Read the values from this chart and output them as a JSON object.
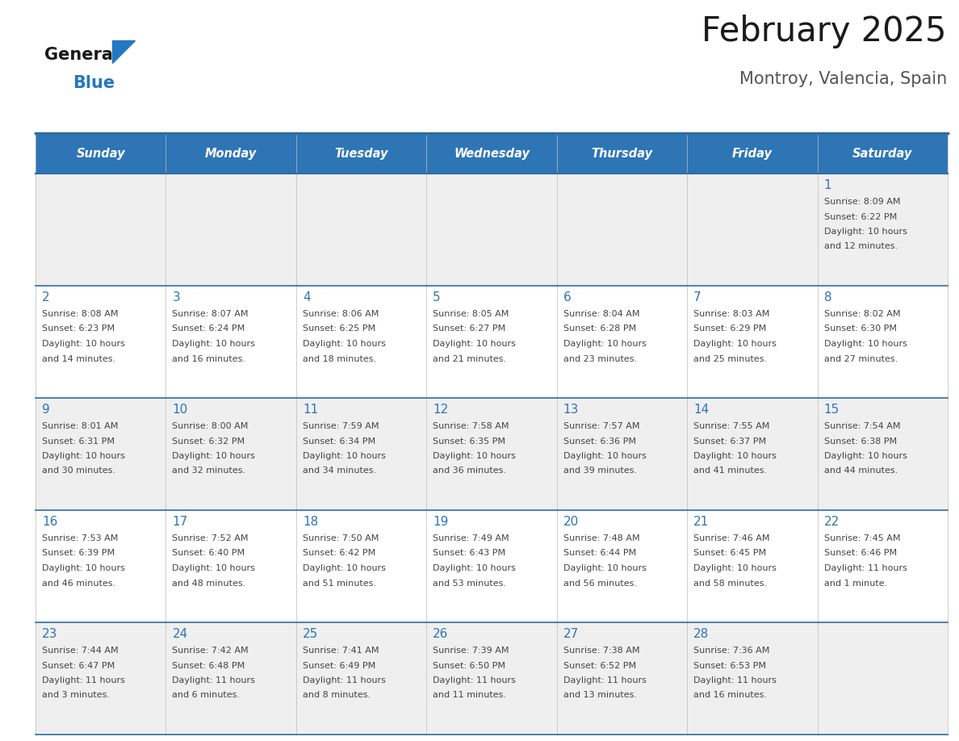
{
  "title": "February 2025",
  "subtitle": "Montroy, Valencia, Spain",
  "header_color": "#2E75B6",
  "header_text_color": "#FFFFFF",
  "cell_bg_white": "#FFFFFF",
  "cell_bg_grey": "#EFEFEF",
  "day_names": [
    "Sunday",
    "Monday",
    "Tuesday",
    "Wednesday",
    "Thursday",
    "Friday",
    "Saturday"
  ],
  "border_color": "#2E6DA4",
  "title_color": "#1a1a1a",
  "subtitle_color": "#555555",
  "day_num_color": "#2E75B6",
  "cell_text_color": "#444444",
  "logo_general_color": "#1a1a1a",
  "logo_blue_color": "#2478C0",
  "weeks": [
    [
      {
        "day": 0,
        "info": ""
      },
      {
        "day": 0,
        "info": ""
      },
      {
        "day": 0,
        "info": ""
      },
      {
        "day": 0,
        "info": ""
      },
      {
        "day": 0,
        "info": ""
      },
      {
        "day": 0,
        "info": ""
      },
      {
        "day": 1,
        "info": "Sunrise: 8:09 AM\nSunset: 6:22 PM\nDaylight: 10 hours\nand 12 minutes."
      }
    ],
    [
      {
        "day": 2,
        "info": "Sunrise: 8:08 AM\nSunset: 6:23 PM\nDaylight: 10 hours\nand 14 minutes."
      },
      {
        "day": 3,
        "info": "Sunrise: 8:07 AM\nSunset: 6:24 PM\nDaylight: 10 hours\nand 16 minutes."
      },
      {
        "day": 4,
        "info": "Sunrise: 8:06 AM\nSunset: 6:25 PM\nDaylight: 10 hours\nand 18 minutes."
      },
      {
        "day": 5,
        "info": "Sunrise: 8:05 AM\nSunset: 6:27 PM\nDaylight: 10 hours\nand 21 minutes."
      },
      {
        "day": 6,
        "info": "Sunrise: 8:04 AM\nSunset: 6:28 PM\nDaylight: 10 hours\nand 23 minutes."
      },
      {
        "day": 7,
        "info": "Sunrise: 8:03 AM\nSunset: 6:29 PM\nDaylight: 10 hours\nand 25 minutes."
      },
      {
        "day": 8,
        "info": "Sunrise: 8:02 AM\nSunset: 6:30 PM\nDaylight: 10 hours\nand 27 minutes."
      }
    ],
    [
      {
        "day": 9,
        "info": "Sunrise: 8:01 AM\nSunset: 6:31 PM\nDaylight: 10 hours\nand 30 minutes."
      },
      {
        "day": 10,
        "info": "Sunrise: 8:00 AM\nSunset: 6:32 PM\nDaylight: 10 hours\nand 32 minutes."
      },
      {
        "day": 11,
        "info": "Sunrise: 7:59 AM\nSunset: 6:34 PM\nDaylight: 10 hours\nand 34 minutes."
      },
      {
        "day": 12,
        "info": "Sunrise: 7:58 AM\nSunset: 6:35 PM\nDaylight: 10 hours\nand 36 minutes."
      },
      {
        "day": 13,
        "info": "Sunrise: 7:57 AM\nSunset: 6:36 PM\nDaylight: 10 hours\nand 39 minutes."
      },
      {
        "day": 14,
        "info": "Sunrise: 7:55 AM\nSunset: 6:37 PM\nDaylight: 10 hours\nand 41 minutes."
      },
      {
        "day": 15,
        "info": "Sunrise: 7:54 AM\nSunset: 6:38 PM\nDaylight: 10 hours\nand 44 minutes."
      }
    ],
    [
      {
        "day": 16,
        "info": "Sunrise: 7:53 AM\nSunset: 6:39 PM\nDaylight: 10 hours\nand 46 minutes."
      },
      {
        "day": 17,
        "info": "Sunrise: 7:52 AM\nSunset: 6:40 PM\nDaylight: 10 hours\nand 48 minutes."
      },
      {
        "day": 18,
        "info": "Sunrise: 7:50 AM\nSunset: 6:42 PM\nDaylight: 10 hours\nand 51 minutes."
      },
      {
        "day": 19,
        "info": "Sunrise: 7:49 AM\nSunset: 6:43 PM\nDaylight: 10 hours\nand 53 minutes."
      },
      {
        "day": 20,
        "info": "Sunrise: 7:48 AM\nSunset: 6:44 PM\nDaylight: 10 hours\nand 56 minutes."
      },
      {
        "day": 21,
        "info": "Sunrise: 7:46 AM\nSunset: 6:45 PM\nDaylight: 10 hours\nand 58 minutes."
      },
      {
        "day": 22,
        "info": "Sunrise: 7:45 AM\nSunset: 6:46 PM\nDaylight: 11 hours\nand 1 minute."
      }
    ],
    [
      {
        "day": 23,
        "info": "Sunrise: 7:44 AM\nSunset: 6:47 PM\nDaylight: 11 hours\nand 3 minutes."
      },
      {
        "day": 24,
        "info": "Sunrise: 7:42 AM\nSunset: 6:48 PM\nDaylight: 11 hours\nand 6 minutes."
      },
      {
        "day": 25,
        "info": "Sunrise: 7:41 AM\nSunset: 6:49 PM\nDaylight: 11 hours\nand 8 minutes."
      },
      {
        "day": 26,
        "info": "Sunrise: 7:39 AM\nSunset: 6:50 PM\nDaylight: 11 hours\nand 11 minutes."
      },
      {
        "day": 27,
        "info": "Sunrise: 7:38 AM\nSunset: 6:52 PM\nDaylight: 11 hours\nand 13 minutes."
      },
      {
        "day": 28,
        "info": "Sunrise: 7:36 AM\nSunset: 6:53 PM\nDaylight: 11 hours\nand 16 minutes."
      },
      {
        "day": 0,
        "info": ""
      }
    ]
  ],
  "row_bg_colors": [
    "#EFEFEF",
    "#FFFFFF",
    "#EFEFEF",
    "#FFFFFF",
    "#EFEFEF"
  ]
}
